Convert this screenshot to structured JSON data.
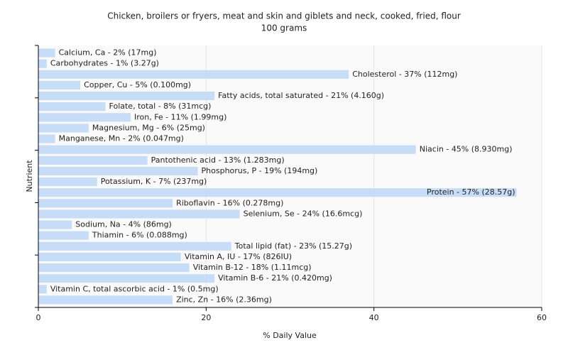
{
  "chart_data": {
    "type": "bar",
    "orientation": "horizontal",
    "title": "Chicken, broilers or fryers, meat and skin and giblets and neck, cooked, fried, flour",
    "subtitle": "100 grams",
    "x_label": "% Daily Value",
    "y_label": "Nutrient",
    "color": "#c6dcf7",
    "values": [
      2,
      1,
      37,
      5,
      21,
      8,
      11,
      6,
      2,
      45,
      13,
      19,
      7,
      57,
      16,
      24,
      4,
      6,
      23,
      17,
      18,
      21,
      1,
      16
    ],
    "value_labels": [
      "Calcium, Ca - 2% (17mg)",
      "Carbohydrates - 1% (3.27g)",
      "Cholesterol - 37% (112mg)",
      "Copper, Cu - 5% (0.100mg)",
      "Fatty acids, total saturated - 21% (4.160g)",
      "Folate, total - 8% (31mcg)",
      "Iron, Fe - 11% (1.99mg)",
      "Magnesium, Mg - 6% (25mg)",
      "Manganese, Mn - 2% (0.047mg)",
      "Niacin - 45% (8.930mg)",
      "Pantothenic acid - 13% (1.283mg)",
      "Phosphorus, P - 19% (194mg)",
      "Potassium, K - 7% (237mg)",
      "Protein - 57% (28.57g)",
      "Riboflavin - 16% (0.278mg)",
      "Selenium, Se - 24% (16.6mcg)",
      "Sodium, Na - 4% (86mg)",
      "Thiamin - 6% (0.088mg)",
      "Total lipid (fat) - 23% (15.27g)",
      "Vitamin A, IU - 17% (826IU)",
      "Vitamin B-12 - 18% (1.11mcg)",
      "Vitamin B-6 - 21% (0.420mg)",
      "Vitamin C, total ascorbic acid - 1% (0.5mg)",
      "Zinc, Zn - 16% (2.36mg)"
    ],
    "xlim": [
      0,
      60
    ],
    "xticks": [
      0,
      20,
      40,
      60
    ],
    "grid": true
  }
}
